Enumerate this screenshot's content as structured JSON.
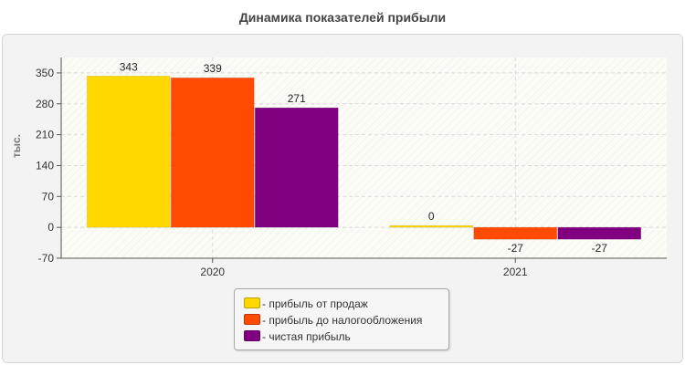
{
  "chart_data": {
    "type": "bar",
    "title": "Динамика показателей прибыли",
    "ylabel": "тыс.",
    "xlabel": "",
    "categories": [
      "2020",
      "2021"
    ],
    "series": [
      {
        "name": "прибыль от продаж",
        "color": "#ffd800",
        "values": [
          343,
          0
        ],
        "labels": [
          "343",
          "0"
        ]
      },
      {
        "name": "прибыль до налогообложения",
        "color": "#ff4a00",
        "values": [
          339,
          -27
        ],
        "labels": [
          "339",
          "-27"
        ]
      },
      {
        "name": "чистая прибыль",
        "color": "#800080",
        "values": [
          271,
          -27
        ],
        "labels": [
          "271",
          "-27"
        ]
      }
    ],
    "ylim": [
      -70,
      385
    ],
    "yticks": [
      -70,
      0,
      70,
      140,
      210,
      280,
      350
    ],
    "grid": true,
    "legend_position": "bottom"
  }
}
